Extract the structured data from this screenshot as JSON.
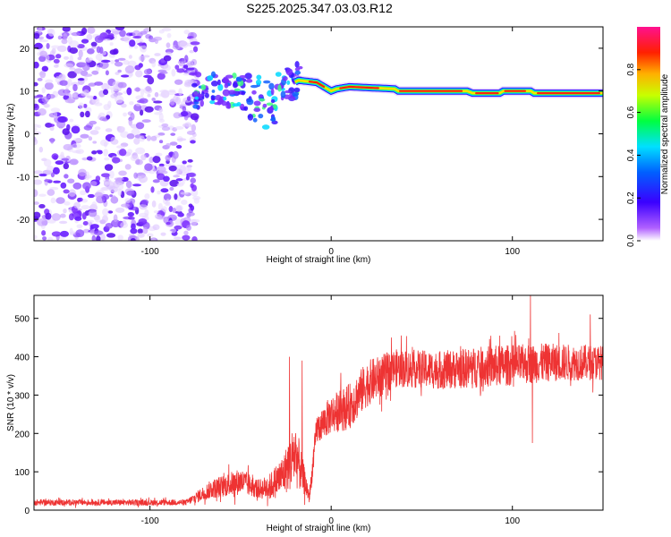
{
  "title": "S225.2025.347.03.03.R12",
  "chart_data": [
    {
      "type": "heatmap",
      "xlabel": "Height of straight line (km)",
      "ylabel": "Frequency (Hz)",
      "xlim": [
        -164,
        150
      ],
      "ylim": [
        -25,
        25
      ],
      "xticks": [
        -100,
        0,
        100
      ],
      "yticks": [
        -20,
        -10,
        0,
        10,
        20
      ],
      "noise_region_x": [
        -164,
        -78
      ],
      "signal_track": [
        {
          "x": -75,
          "y": 10
        },
        {
          "x": -60,
          "y": 10.5
        },
        {
          "x": -45,
          "y": 9.5
        },
        {
          "x": -30,
          "y": 10
        },
        {
          "x": -18,
          "y": 12.5
        },
        {
          "x": -8,
          "y": 12
        },
        {
          "x": 0,
          "y": 10
        },
        {
          "x": 3,
          "y": 10.5
        },
        {
          "x": 10,
          "y": 11
        },
        {
          "x": 35,
          "y": 10.5
        },
        {
          "x": 37,
          "y": 10
        },
        {
          "x": 75,
          "y": 10
        },
        {
          "x": 78,
          "y": 9.5
        },
        {
          "x": 93,
          "y": 9.5
        },
        {
          "x": 95,
          "y": 10
        },
        {
          "x": 110,
          "y": 10
        },
        {
          "x": 112,
          "y": 9.5
        },
        {
          "x": 150,
          "y": 9.5
        }
      ],
      "colorbar": {
        "label": "Normalized spectral amplitude",
        "range": [
          0,
          1
        ],
        "ticks": [
          0.0,
          0.2,
          0.4,
          0.6,
          0.8
        ]
      }
    },
    {
      "type": "line",
      "xlabel": "Height of straight line (km)",
      "ylabel": "SNR (10 * v/v)",
      "xlim": [
        -164,
        150
      ],
      "ylim": [
        0,
        560
      ],
      "xticks": [
        -100,
        0,
        100
      ],
      "yticks": [
        0,
        100,
        200,
        300,
        400,
        500
      ],
      "series": [
        {
          "name": "SNR",
          "color": "#ee3333",
          "envelope": [
            {
              "x": -164,
              "mean": 20,
              "spread": 8
            },
            {
              "x": -80,
              "mean": 20,
              "spread": 8
            },
            {
              "x": -66,
              "mean": 55,
              "spread": 25
            },
            {
              "x": -50,
              "mean": 75,
              "spread": 35
            },
            {
              "x": -40,
              "mean": 55,
              "spread": 25
            },
            {
              "x": -34,
              "mean": 60,
              "spread": 35
            },
            {
              "x": -26,
              "mean": 95,
              "spread": 55
            },
            {
              "x": -20,
              "mean": 150,
              "spread": 90
            },
            {
              "x": -15,
              "mean": 80,
              "spread": 40
            },
            {
              "x": -12,
              "mean": 35,
              "spread": 20
            },
            {
              "x": -8,
              "mean": 210,
              "spread": 40
            },
            {
              "x": 0,
              "mean": 250,
              "spread": 50
            },
            {
              "x": 10,
              "mean": 270,
              "spread": 60
            },
            {
              "x": 20,
              "mean": 330,
              "spread": 60
            },
            {
              "x": 35,
              "mean": 370,
              "spread": 50
            },
            {
              "x": 60,
              "mean": 365,
              "spread": 50
            },
            {
              "x": 90,
              "mean": 375,
              "spread": 55
            },
            {
              "x": 120,
              "mean": 385,
              "spread": 50
            },
            {
              "x": 150,
              "mean": 385,
              "spread": 45
            }
          ],
          "peaks": [
            {
              "x": -23,
              "y": 400
            },
            {
              "x": -16,
              "y": 390
            },
            {
              "x": 110,
              "y": 560
            },
            {
              "x": 143,
              "y": 510
            },
            {
              "x": 111,
              "y": 175
            }
          ]
        }
      ]
    }
  ]
}
